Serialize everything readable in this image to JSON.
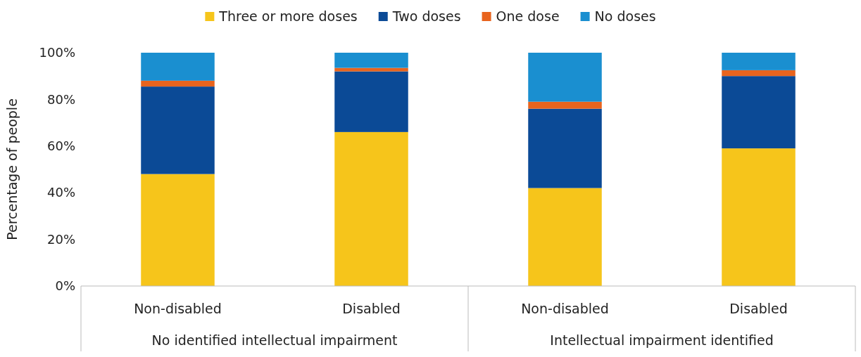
{
  "chart_data": {
    "type": "bar",
    "stacked": true,
    "ylabel": "Percentage of people",
    "categories": [
      "Non-disabled",
      "Disabled",
      "Non-disabled",
      "Disabled"
    ],
    "series": [
      {
        "name": "Three or more doses",
        "color": "#f6c51b",
        "values": [
          48,
          66,
          42,
          59
        ]
      },
      {
        "name": "Two doses",
        "color": "#0b4a96",
        "values": [
          37.5,
          26,
          34,
          31
        ]
      },
      {
        "name": "One dose",
        "color": "#e8641e",
        "values": [
          2.5,
          1.5,
          3,
          2.5
        ]
      },
      {
        "name": "No doses",
        "color": "#1a8fd0",
        "values": [
          12,
          6.5,
          21,
          7.5
        ]
      }
    ],
    "ylim": [
      0,
      100
    ],
    "yticks": [
      {
        "value": 0,
        "label": "0%"
      },
      {
        "value": 20,
        "label": "20%"
      },
      {
        "value": 40,
        "label": "40%"
      },
      {
        "value": 60,
        "label": "60%"
      },
      {
        "value": 80,
        "label": "80%"
      },
      {
        "value": 100,
        "label": "100%"
      }
    ],
    "grid": false,
    "legend": "top",
    "annotations": [
      "No identified intellectual impairment",
      "Intellectual impairment identified"
    ]
  }
}
